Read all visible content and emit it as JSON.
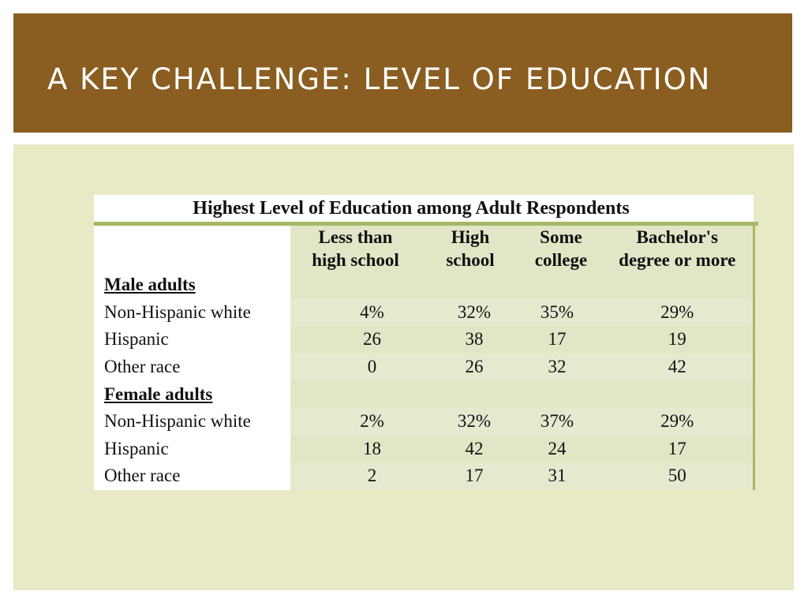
{
  "slide": {
    "title": "A KEY CHALLENGE: LEVEL OF EDUCATION"
  },
  "table": {
    "caption": "Highest Level of Education among Adult Respondents",
    "columns": [
      "Less than high school",
      "High school",
      "Some college",
      "Bachelor's degree or more"
    ],
    "column_lines": [
      [
        "Less than",
        "high school"
      ],
      [
        "High",
        "school"
      ],
      [
        "Some",
        "college"
      ],
      [
        "Bachelor's",
        "degree or more"
      ]
    ],
    "groups": [
      {
        "label": "Male adults",
        "rows": [
          {
            "label": "Non-Hispanic white",
            "values": [
              "4%",
              "32%",
              "35%",
              "29%"
            ]
          },
          {
            "label": "Hispanic",
            "values": [
              "26",
              "38",
              "17",
              "19"
            ]
          },
          {
            "label": "Other race",
            "values": [
              "0",
              "26",
              "32",
              "42"
            ]
          }
        ]
      },
      {
        "label": "Female adults",
        "rows": [
          {
            "label": "Non-Hispanic white",
            "values": [
              "2%",
              "32%",
              "37%",
              "29%"
            ]
          },
          {
            "label": "Hispanic",
            "values": [
              "18",
              "42",
              "24",
              "17"
            ]
          },
          {
            "label": "Other race",
            "values": [
              "2",
              "17",
              "31",
              "50"
            ]
          }
        ]
      }
    ]
  },
  "colors": {
    "title_bar": "#8a5d20",
    "panel": "#e8e9c5",
    "accent_green": "#a4b865"
  }
}
